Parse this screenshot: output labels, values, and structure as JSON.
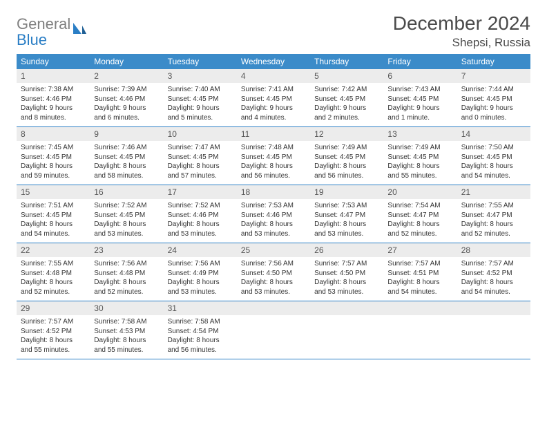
{
  "logo": {
    "word1": "General",
    "word2": "Blue"
  },
  "title": "December 2024",
  "location": "Shepsi, Russia",
  "colors": {
    "header_bg": "#3b8bc9",
    "header_text": "#ffffff",
    "daynum_bg": "#ececec",
    "rule": "#2a7ec5",
    "logo_gray": "#808080",
    "logo_blue": "#2a7ec5"
  },
  "weekdays": [
    "Sunday",
    "Monday",
    "Tuesday",
    "Wednesday",
    "Thursday",
    "Friday",
    "Saturday"
  ],
  "weeks": [
    [
      {
        "n": "1",
        "sunrise": "Sunrise: 7:38 AM",
        "sunset": "Sunset: 4:46 PM",
        "day1": "Daylight: 9 hours",
        "day2": "and 8 minutes."
      },
      {
        "n": "2",
        "sunrise": "Sunrise: 7:39 AM",
        "sunset": "Sunset: 4:46 PM",
        "day1": "Daylight: 9 hours",
        "day2": "and 6 minutes."
      },
      {
        "n": "3",
        "sunrise": "Sunrise: 7:40 AM",
        "sunset": "Sunset: 4:45 PM",
        "day1": "Daylight: 9 hours",
        "day2": "and 5 minutes."
      },
      {
        "n": "4",
        "sunrise": "Sunrise: 7:41 AM",
        "sunset": "Sunset: 4:45 PM",
        "day1": "Daylight: 9 hours",
        "day2": "and 4 minutes."
      },
      {
        "n": "5",
        "sunrise": "Sunrise: 7:42 AM",
        "sunset": "Sunset: 4:45 PM",
        "day1": "Daylight: 9 hours",
        "day2": "and 2 minutes."
      },
      {
        "n": "6",
        "sunrise": "Sunrise: 7:43 AM",
        "sunset": "Sunset: 4:45 PM",
        "day1": "Daylight: 9 hours",
        "day2": "and 1 minute."
      },
      {
        "n": "7",
        "sunrise": "Sunrise: 7:44 AM",
        "sunset": "Sunset: 4:45 PM",
        "day1": "Daylight: 9 hours",
        "day2": "and 0 minutes."
      }
    ],
    [
      {
        "n": "8",
        "sunrise": "Sunrise: 7:45 AM",
        "sunset": "Sunset: 4:45 PM",
        "day1": "Daylight: 8 hours",
        "day2": "and 59 minutes."
      },
      {
        "n": "9",
        "sunrise": "Sunrise: 7:46 AM",
        "sunset": "Sunset: 4:45 PM",
        "day1": "Daylight: 8 hours",
        "day2": "and 58 minutes."
      },
      {
        "n": "10",
        "sunrise": "Sunrise: 7:47 AM",
        "sunset": "Sunset: 4:45 PM",
        "day1": "Daylight: 8 hours",
        "day2": "and 57 minutes."
      },
      {
        "n": "11",
        "sunrise": "Sunrise: 7:48 AM",
        "sunset": "Sunset: 4:45 PM",
        "day1": "Daylight: 8 hours",
        "day2": "and 56 minutes."
      },
      {
        "n": "12",
        "sunrise": "Sunrise: 7:49 AM",
        "sunset": "Sunset: 4:45 PM",
        "day1": "Daylight: 8 hours",
        "day2": "and 56 minutes."
      },
      {
        "n": "13",
        "sunrise": "Sunrise: 7:49 AM",
        "sunset": "Sunset: 4:45 PM",
        "day1": "Daylight: 8 hours",
        "day2": "and 55 minutes."
      },
      {
        "n": "14",
        "sunrise": "Sunrise: 7:50 AM",
        "sunset": "Sunset: 4:45 PM",
        "day1": "Daylight: 8 hours",
        "day2": "and 54 minutes."
      }
    ],
    [
      {
        "n": "15",
        "sunrise": "Sunrise: 7:51 AM",
        "sunset": "Sunset: 4:45 PM",
        "day1": "Daylight: 8 hours",
        "day2": "and 54 minutes."
      },
      {
        "n": "16",
        "sunrise": "Sunrise: 7:52 AM",
        "sunset": "Sunset: 4:45 PM",
        "day1": "Daylight: 8 hours",
        "day2": "and 53 minutes."
      },
      {
        "n": "17",
        "sunrise": "Sunrise: 7:52 AM",
        "sunset": "Sunset: 4:46 PM",
        "day1": "Daylight: 8 hours",
        "day2": "and 53 minutes."
      },
      {
        "n": "18",
        "sunrise": "Sunrise: 7:53 AM",
        "sunset": "Sunset: 4:46 PM",
        "day1": "Daylight: 8 hours",
        "day2": "and 53 minutes."
      },
      {
        "n": "19",
        "sunrise": "Sunrise: 7:53 AM",
        "sunset": "Sunset: 4:47 PM",
        "day1": "Daylight: 8 hours",
        "day2": "and 53 minutes."
      },
      {
        "n": "20",
        "sunrise": "Sunrise: 7:54 AM",
        "sunset": "Sunset: 4:47 PM",
        "day1": "Daylight: 8 hours",
        "day2": "and 52 minutes."
      },
      {
        "n": "21",
        "sunrise": "Sunrise: 7:55 AM",
        "sunset": "Sunset: 4:47 PM",
        "day1": "Daylight: 8 hours",
        "day2": "and 52 minutes."
      }
    ],
    [
      {
        "n": "22",
        "sunrise": "Sunrise: 7:55 AM",
        "sunset": "Sunset: 4:48 PM",
        "day1": "Daylight: 8 hours",
        "day2": "and 52 minutes."
      },
      {
        "n": "23",
        "sunrise": "Sunrise: 7:56 AM",
        "sunset": "Sunset: 4:48 PM",
        "day1": "Daylight: 8 hours",
        "day2": "and 52 minutes."
      },
      {
        "n": "24",
        "sunrise": "Sunrise: 7:56 AM",
        "sunset": "Sunset: 4:49 PM",
        "day1": "Daylight: 8 hours",
        "day2": "and 53 minutes."
      },
      {
        "n": "25",
        "sunrise": "Sunrise: 7:56 AM",
        "sunset": "Sunset: 4:50 PM",
        "day1": "Daylight: 8 hours",
        "day2": "and 53 minutes."
      },
      {
        "n": "26",
        "sunrise": "Sunrise: 7:57 AM",
        "sunset": "Sunset: 4:50 PM",
        "day1": "Daylight: 8 hours",
        "day2": "and 53 minutes."
      },
      {
        "n": "27",
        "sunrise": "Sunrise: 7:57 AM",
        "sunset": "Sunset: 4:51 PM",
        "day1": "Daylight: 8 hours",
        "day2": "and 54 minutes."
      },
      {
        "n": "28",
        "sunrise": "Sunrise: 7:57 AM",
        "sunset": "Sunset: 4:52 PM",
        "day1": "Daylight: 8 hours",
        "day2": "and 54 minutes."
      }
    ],
    [
      {
        "n": "29",
        "sunrise": "Sunrise: 7:57 AM",
        "sunset": "Sunset: 4:52 PM",
        "day1": "Daylight: 8 hours",
        "day2": "and 55 minutes."
      },
      {
        "n": "30",
        "sunrise": "Sunrise: 7:58 AM",
        "sunset": "Sunset: 4:53 PM",
        "day1": "Daylight: 8 hours",
        "day2": "and 55 minutes."
      },
      {
        "n": "31",
        "sunrise": "Sunrise: 7:58 AM",
        "sunset": "Sunset: 4:54 PM",
        "day1": "Daylight: 8 hours",
        "day2": "and 56 minutes."
      },
      {
        "empty": true
      },
      {
        "empty": true
      },
      {
        "empty": true
      },
      {
        "empty": true
      }
    ]
  ]
}
